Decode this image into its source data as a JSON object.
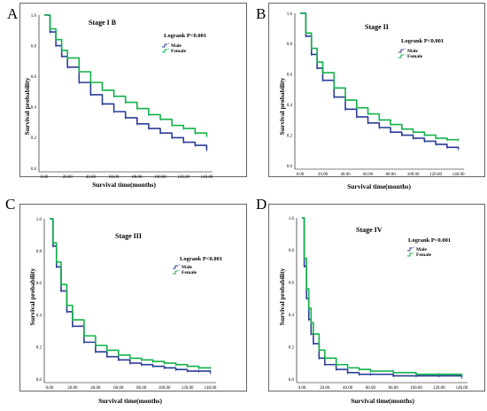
{
  "chart_data": [
    {
      "panel_letter": "A",
      "type": "line",
      "title": "Stage I B",
      "annotation": "Logrank P<0.001",
      "xlabel": "Survival time(months)",
      "ylabel": "Survival probability",
      "xlim": [
        0,
        145
      ],
      "ylim": [
        0,
        1.0
      ],
      "x_ticks": [
        "0.00",
        "20.00",
        "40.00",
        "60.00",
        "80.00",
        "100.00",
        "120.00",
        "140.00"
      ],
      "y_ticks": [
        "0.0",
        "0.2",
        "0.4",
        "0.6",
        "0.8",
        "1.0"
      ],
      "legend": "top-right",
      "series": [
        {
          "name": "Male",
          "color": "#2a3d96",
          "x": [
            0,
            5,
            10,
            15,
            20,
            30,
            40,
            50,
            60,
            70,
            80,
            90,
            100,
            110,
            120,
            130,
            140
          ],
          "values": [
            1.0,
            0.89,
            0.8,
            0.73,
            0.66,
            0.56,
            0.48,
            0.42,
            0.37,
            0.33,
            0.29,
            0.26,
            0.23,
            0.2,
            0.17,
            0.15,
            0.12
          ]
        },
        {
          "name": "Female",
          "color": "#12b24a",
          "x": [
            0,
            5,
            10,
            15,
            20,
            30,
            40,
            50,
            60,
            70,
            80,
            90,
            100,
            110,
            120,
            130,
            140
          ],
          "values": [
            1.0,
            0.91,
            0.84,
            0.77,
            0.72,
            0.63,
            0.56,
            0.51,
            0.47,
            0.43,
            0.39,
            0.35,
            0.32,
            0.28,
            0.26,
            0.23,
            0.21
          ]
        }
      ]
    },
    {
      "panel_letter": "B",
      "type": "line",
      "title": "Stage II",
      "annotation": "Logrank P<0.001",
      "xlabel": "Survival time(months)",
      "ylabel": "Survival probability",
      "xlim": [
        0,
        145
      ],
      "ylim": [
        0,
        1.0
      ],
      "x_ticks": [
        "0.00",
        "20.00",
        "40.00",
        "60.00",
        "80.00",
        "100.00",
        "120.00",
        "140.00"
      ],
      "y_ticks": [
        "0.0",
        "0.2",
        "0.4",
        "0.6",
        "0.8",
        "1.0"
      ],
      "legend": "top-right",
      "series": [
        {
          "name": "Male",
          "color": "#2a3d96",
          "x": [
            0,
            5,
            10,
            15,
            20,
            30,
            40,
            50,
            60,
            70,
            80,
            90,
            100,
            110,
            120,
            130,
            140
          ],
          "values": [
            1.0,
            0.85,
            0.73,
            0.64,
            0.56,
            0.45,
            0.37,
            0.32,
            0.28,
            0.25,
            0.22,
            0.2,
            0.18,
            0.16,
            0.14,
            0.12,
            0.11
          ]
        },
        {
          "name": "Female",
          "color": "#12b24a",
          "x": [
            0,
            5,
            10,
            15,
            20,
            30,
            40,
            50,
            60,
            70,
            80,
            90,
            100,
            110,
            120,
            130,
            140
          ],
          "values": [
            1.0,
            0.87,
            0.77,
            0.68,
            0.61,
            0.51,
            0.43,
            0.38,
            0.34,
            0.3,
            0.27,
            0.24,
            0.22,
            0.2,
            0.18,
            0.17,
            0.17
          ]
        }
      ]
    },
    {
      "panel_letter": "C",
      "type": "line",
      "title": "Stage III",
      "annotation": "Logrank P<0.001",
      "xlabel": "Survival time(months)",
      "ylabel": "Survival probability",
      "xlim": [
        0,
        145
      ],
      "ylim": [
        0,
        1.0
      ],
      "x_ticks": [
        "0.00",
        "20.00",
        "40.00",
        "60.00",
        "80.00",
        "100.00",
        "120.00",
        "140.00"
      ],
      "y_ticks": [
        "0.0",
        "0.2",
        "0.4",
        "0.6",
        "0.8",
        "1.0"
      ],
      "legend": "top-right",
      "series": [
        {
          "name": "Male",
          "color": "#2a3d96",
          "x": [
            0,
            3,
            6,
            10,
            15,
            20,
            30,
            40,
            50,
            60,
            70,
            80,
            90,
            100,
            110,
            120,
            130,
            140
          ],
          "values": [
            1.0,
            0.83,
            0.7,
            0.55,
            0.42,
            0.33,
            0.23,
            0.17,
            0.14,
            0.12,
            0.1,
            0.09,
            0.08,
            0.07,
            0.06,
            0.05,
            0.05,
            0.04
          ]
        },
        {
          "name": "Female",
          "color": "#12b24a",
          "x": [
            0,
            3,
            6,
            10,
            15,
            20,
            30,
            40,
            50,
            60,
            70,
            80,
            90,
            100,
            110,
            120,
            130,
            140
          ],
          "values": [
            1.0,
            0.85,
            0.73,
            0.59,
            0.46,
            0.37,
            0.27,
            0.21,
            0.18,
            0.15,
            0.13,
            0.12,
            0.11,
            0.1,
            0.09,
            0.08,
            0.07,
            0.07
          ]
        }
      ]
    },
    {
      "panel_letter": "D",
      "type": "line",
      "title": "Stage IV",
      "annotation": "Logrank P<0.001",
      "xlabel": "Survival time(months)",
      "ylabel": "Survival probability",
      "xlim": [
        0,
        145
      ],
      "ylim": [
        0,
        1.0
      ],
      "x_ticks": [
        "0.00",
        "20.00",
        "40.00",
        "60.00",
        "80.00",
        "100.00",
        "120.00",
        "140.00"
      ],
      "y_ticks": [
        "0.0",
        "0.2",
        "0.4",
        "0.6",
        "0.8",
        "1.0"
      ],
      "legend": "top-right",
      "series": [
        {
          "name": "Male",
          "color": "#2a3d96",
          "x": [
            0,
            2,
            4,
            6,
            8,
            10,
            15,
            20,
            30,
            40,
            50,
            60,
            80,
            100,
            120,
            140
          ],
          "values": [
            1.0,
            0.7,
            0.5,
            0.37,
            0.28,
            0.22,
            0.13,
            0.09,
            0.06,
            0.04,
            0.03,
            0.03,
            0.02,
            0.02,
            0.02,
            0.01
          ]
        },
        {
          "name": "Female",
          "color": "#12b24a",
          "x": [
            0,
            2,
            4,
            6,
            8,
            10,
            15,
            20,
            30,
            40,
            50,
            60,
            80,
            100,
            120,
            140
          ],
          "values": [
            1.0,
            0.75,
            0.56,
            0.44,
            0.35,
            0.28,
            0.18,
            0.13,
            0.09,
            0.07,
            0.06,
            0.05,
            0.04,
            0.03,
            0.03,
            0.02
          ]
        }
      ]
    }
  ]
}
